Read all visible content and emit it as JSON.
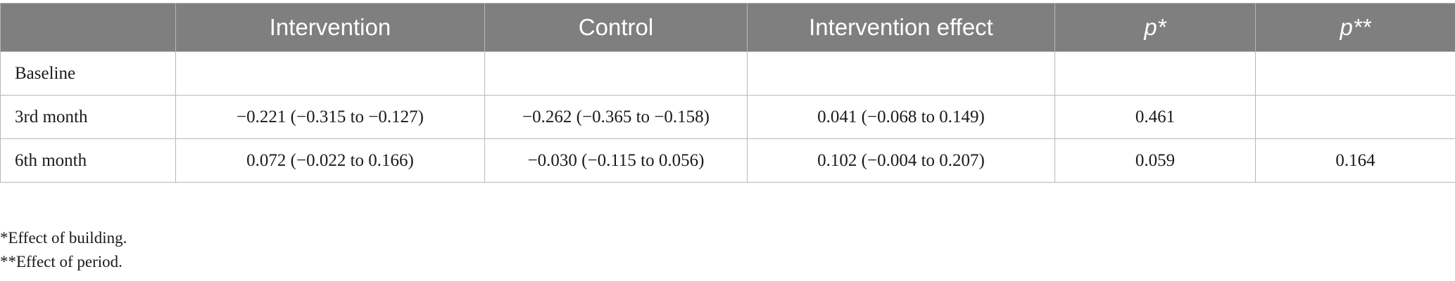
{
  "table": {
    "headers": [
      "",
      "Intervention",
      "Control",
      "Intervention effect",
      "p*",
      "p**"
    ],
    "rows": [
      {
        "label": "Baseline",
        "cells": [
          "",
          "",
          "",
          "",
          ""
        ]
      },
      {
        "label": "3rd month",
        "cells": [
          "−0.221 (−0.315 to −0.127)",
          "−0.262 (−0.365 to −0.158)",
          "0.041 (−0.068 to 0.149)",
          "0.461",
          ""
        ]
      },
      {
        "label": "6th month",
        "cells": [
          "0.072 (−0.022 to 0.166)",
          "−0.030 (−0.115 to 0.056)",
          "0.102 (−0.004 to 0.207)",
          "0.059",
          "0.164"
        ]
      }
    ],
    "header_bg": "#7f7f7f"
  },
  "footnotes": [
    "*Effect of building.",
    "**Effect of period."
  ]
}
